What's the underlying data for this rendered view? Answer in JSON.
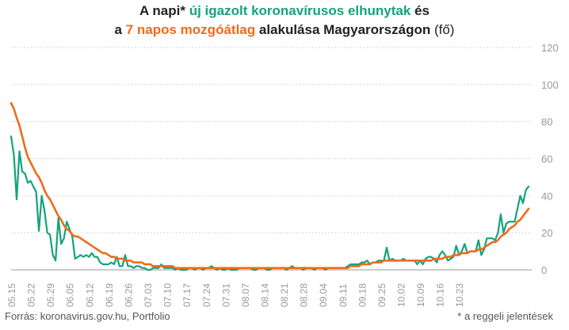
{
  "title": {
    "line1": {
      "p1": "A napi* ",
      "green": "új igazolt koronavírusos elhunytak",
      "p2": " és"
    },
    "line2": {
      "p1": "a ",
      "orange": "7 napos mozgóátlag",
      "p2": " alakulása Magyarországon",
      "p3": " (fő)"
    }
  },
  "footer": {
    "source": "Forrás: koronavirus.gov.hu, Portfolio",
    "note": "* a reggeli jelentések"
  },
  "colors": {
    "daily": "#14a37a",
    "ma": "#ef6a1c",
    "grid": "#d6d6d6",
    "axis": "#999999"
  },
  "chart_data": {
    "type": "line",
    "ylim": [
      0,
      120
    ],
    "yticks": [
      0,
      20,
      40,
      60,
      80,
      100,
      120
    ],
    "xlabels": [
      "05.15",
      "05.22",
      "05.29",
      "06.05",
      "06.12",
      "06.19",
      "06.26",
      "07.03",
      "07.10",
      "07.17",
      "07.24",
      "07.31",
      "08.07",
      "08.14",
      "08.21",
      "08.28",
      "09.04",
      "09.11",
      "09.18",
      "09.25",
      "10.02",
      "10.09",
      "10.16",
      "10.23"
    ],
    "series": [
      {
        "key": "daily",
        "values": [
          72,
          62,
          38,
          64,
          53,
          52,
          47,
          48,
          45,
          42,
          21,
          40,
          32,
          20,
          19,
          8,
          5,
          28,
          14,
          17,
          26,
          22,
          18,
          6,
          7,
          8,
          7,
          8,
          7,
          9,
          7,
          7,
          4,
          3,
          3,
          3,
          4,
          3,
          7,
          2,
          2,
          8,
          2,
          2,
          1,
          2,
          2,
          1,
          1,
          0,
          0,
          1,
          1,
          1,
          3,
          1,
          1,
          1,
          1,
          0,
          1,
          0,
          0,
          0,
          1,
          1,
          0,
          1,
          1,
          0,
          1,
          1,
          2,
          1,
          0,
          1,
          0,
          0,
          1,
          0,
          0,
          0,
          1,
          1,
          1,
          1,
          1,
          0,
          0,
          1,
          1,
          1,
          0,
          0,
          1,
          1,
          1,
          1,
          1,
          0,
          1,
          2,
          1,
          1,
          1,
          0,
          1,
          1,
          1,
          0,
          1,
          1,
          1,
          0,
          1,
          1,
          1,
          1,
          1,
          1,
          1,
          2,
          3,
          3,
          3,
          3,
          4,
          4,
          5,
          3,
          4,
          4,
          5,
          5,
          5,
          12,
          5,
          6,
          5,
          5,
          5,
          6,
          5,
          5,
          5,
          5,
          3,
          5,
          3,
          6,
          7,
          7,
          6,
          4,
          8,
          10,
          8,
          5,
          6,
          7,
          13,
          8,
          10,
          14,
          9,
          10,
          10,
          10,
          16,
          8,
          11,
          17,
          17,
          17,
          16,
          20,
          30,
          20,
          25,
          26,
          26,
          26,
          33,
          40,
          36,
          43,
          45
        ]
      },
      {
        "key": "ma",
        "values": [
          90,
          87,
          82,
          78,
          72,
          66,
          61,
          58,
          55,
          52,
          50,
          47,
          43,
          40,
          38,
          35,
          32,
          29,
          27,
          24,
          22,
          21,
          19,
          18,
          18,
          17,
          16,
          15,
          14,
          13,
          12,
          11,
          10,
          9,
          9,
          8,
          7,
          7,
          6,
          6,
          6,
          5,
          5,
          5,
          4,
          4,
          4,
          4,
          3,
          3,
          3,
          2,
          2,
          2,
          2,
          2,
          2,
          2,
          2,
          1,
          1,
          1,
          1,
          1,
          1,
          1,
          1,
          1,
          1,
          1,
          1,
          1,
          1,
          1,
          1,
          1,
          1,
          1,
          1,
          1,
          1,
          1,
          1,
          1,
          1,
          1,
          1,
          1,
          1,
          1,
          1,
          1,
          1,
          1,
          1,
          1,
          1,
          1,
          1,
          1,
          1,
          1,
          1,
          1,
          1,
          1,
          1,
          1,
          1,
          1,
          1,
          1,
          1,
          1,
          1,
          1,
          1,
          1,
          1,
          1,
          1,
          1,
          2,
          2,
          2,
          2,
          3,
          3,
          3,
          3,
          4,
          4,
          4,
          4,
          5,
          5,
          5,
          5,
          5,
          5,
          5,
          5,
          5,
          5,
          5,
          5,
          5,
          5,
          5,
          5,
          5,
          5,
          6,
          6,
          6,
          6,
          7,
          7,
          7,
          8,
          8,
          8,
          9,
          9,
          9,
          10,
          10,
          10,
          11,
          11,
          12,
          13,
          14,
          15,
          15,
          16,
          18,
          19,
          20,
          22,
          23,
          24,
          26,
          27,
          29,
          31,
          33
        ]
      }
    ],
    "grid": true
  }
}
